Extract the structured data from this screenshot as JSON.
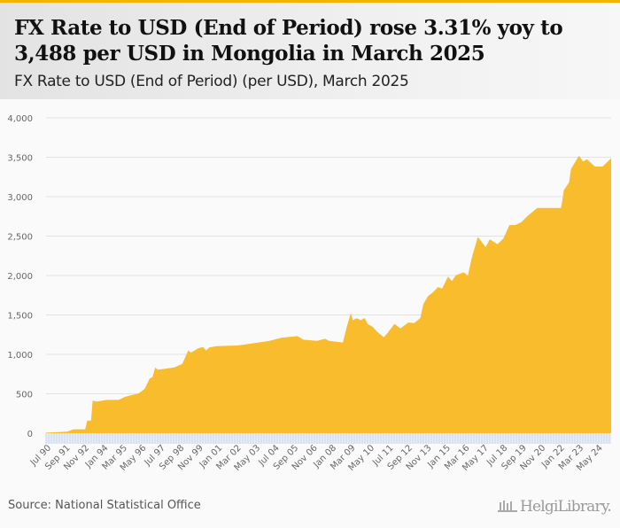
{
  "header": {
    "title": "FX Rate to USD (End of Period) rose 3.31% yoy to 3,488 per USD in Mongolia in March 2025",
    "subtitle": "FX Rate to USD (End of Period) (per USD), March 2025"
  },
  "footer": {
    "source": "Source: National Statistical Office",
    "logo": "HelgiLibrary."
  },
  "colors": {
    "area": "#f9bc2c",
    "accent": "#f5b400",
    "grid": "#e2e2e2",
    "axis_band": "#c9d6ea"
  },
  "chart_data": {
    "type": "area",
    "title": "FX Rate to USD (End of Period) (per USD), March 2025",
    "xlabel": "",
    "ylabel": "per USD",
    "ylim": [
      0,
      4000
    ],
    "xlim": [
      1990.5,
      2025.17
    ],
    "grid": true,
    "yticks": [
      0,
      500,
      1000,
      1500,
      2000,
      2500,
      3000,
      3500,
      4000
    ],
    "ytick_labels": [
      "0",
      "500",
      "1,000",
      "1,500",
      "2,000",
      "2,500",
      "3,000",
      "3,500",
      "4,000"
    ],
    "xtick_labels": [
      "Jul 90",
      "Sep 91",
      "Nov 92",
      "Jan 94",
      "Mar 95",
      "May 96",
      "Jul 97",
      "Sep 98",
      "Nov 99",
      "Jan 01",
      "Mar 02",
      "May 03",
      "Jul 04",
      "Sep 05",
      "Nov 06",
      "Jan 08",
      "Mar 09",
      "May 10",
      "Jul 11",
      "Sep 12",
      "Nov 13",
      "Jan 15",
      "Mar 16",
      "May 17",
      "Jul 18",
      "Sep 19",
      "Nov 20",
      "Jan 22",
      "Mar 23",
      "May 24"
    ],
    "xtick_start": 1990.5,
    "xtick_step_years": 1.1667,
    "series": [
      {
        "name": "FX Rate to USD (End of Period)",
        "x": [
          1990.5,
          1991.8,
          1992.17,
          1992.9,
          1993.02,
          1993.26,
          1993.36,
          1993.63,
          1994.23,
          1994.96,
          1995.33,
          1996.18,
          1996.55,
          1996.86,
          1997.03,
          1997.2,
          1997.35,
          1998.37,
          1998.86,
          1999.22,
          1999.39,
          1999.83,
          2000.12,
          2000.32,
          2000.51,
          2000.93,
          2002.26,
          2003.24,
          2004.21,
          2004.94,
          2005.91,
          2006.28,
          2007.13,
          2007.62,
          2007.86,
          2008.71,
          2008.95,
          2009.2,
          2009.32,
          2009.56,
          2009.8,
          2010.05,
          2010.22,
          2010.54,
          2010.78,
          2011.22,
          2011.39,
          2011.88,
          2012.24,
          2012.73,
          2013.09,
          2013.46,
          2013.65,
          2013.94,
          2014.19,
          2014.55,
          2014.8,
          2015.16,
          2015.4,
          2015.65,
          2016.13,
          2016.38,
          2016.62,
          2016.99,
          2017.47,
          2017.72,
          2018.2,
          2018.57,
          2018.93,
          2019.3,
          2019.66,
          2020.03,
          2020.64,
          2022.1,
          2022.27,
          2022.59,
          2022.71,
          2023.2,
          2023.44,
          2023.68,
          2024.17,
          2024.65,
          2025.17
        ],
        "values": [
          7,
          19,
          49,
          49,
          161,
          161,
          412,
          401,
          423,
          423,
          461,
          506,
          562,
          693,
          712,
          835,
          805,
          835,
          880,
          1049,
          1022,
          1075,
          1094,
          1049,
          1086,
          1105,
          1112,
          1142,
          1172,
          1210,
          1232,
          1187,
          1172,
          1198,
          1172,
          1150,
          1348,
          1524,
          1434,
          1457,
          1434,
          1461,
          1386,
          1348,
          1292,
          1217,
          1255,
          1386,
          1329,
          1404,
          1397,
          1461,
          1637,
          1741,
          1779,
          1854,
          1835,
          1985,
          1929,
          2004,
          2041,
          1996,
          2228,
          2490,
          2359,
          2460,
          2397,
          2472,
          2640,
          2640,
          2678,
          2753,
          2857,
          2857,
          3082,
          3183,
          3352,
          3520,
          3445,
          3475,
          3382,
          3382,
          3488
        ]
      }
    ]
  }
}
